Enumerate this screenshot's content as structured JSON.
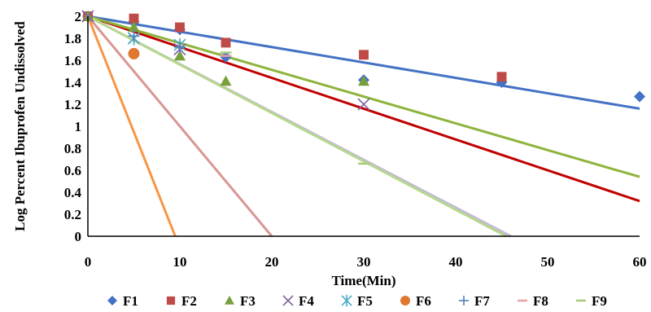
{
  "chart_data": {
    "type": "scatter",
    "xlabel": "Time(Min)",
    "ylabel": "Log Percent Ibuprofen Undissolved",
    "xlim": [
      0,
      60
    ],
    "ylim": [
      0,
      2
    ],
    "x_ticks": [
      "0",
      "10",
      "20",
      "30",
      "40",
      "50",
      "60"
    ],
    "y_ticks": [
      "0",
      "0.2",
      "0.4",
      "0.6",
      "0.8",
      "1",
      "1.2",
      "1.4",
      "1.6",
      "1.8",
      "2"
    ],
    "legend_position": "bottom",
    "series": [
      {
        "name": "F1",
        "marker": "diamond",
        "color": "#4472C4",
        "points": [
          [
            0,
            2.0
          ],
          [
            5,
            1.95
          ],
          [
            10,
            1.88
          ],
          [
            15,
            1.63
          ],
          [
            30,
            1.42
          ],
          [
            45,
            1.4
          ],
          [
            60,
            1.27
          ]
        ],
        "trendline": {
          "color": "#4472C4",
          "points": [
            [
              0,
              2.0
            ],
            [
              60,
              1.16
            ]
          ]
        }
      },
      {
        "name": "F2",
        "marker": "square",
        "color": "#BE4B48",
        "points": [
          [
            0,
            2.0
          ],
          [
            5,
            1.98
          ],
          [
            10,
            1.9
          ],
          [
            15,
            1.76
          ],
          [
            30,
            1.65
          ],
          [
            45,
            1.45
          ]
        ],
        "trendline": {
          "color": "#C00000",
          "points": [
            [
              0,
              2.0
            ],
            [
              60,
              0.32
            ]
          ]
        }
      },
      {
        "name": "F3",
        "marker": "triangle",
        "color": "#77A03C",
        "points": [
          [
            0,
            2.0
          ],
          [
            5,
            1.9
          ],
          [
            10,
            1.64
          ],
          [
            15,
            1.41
          ],
          [
            30,
            1.41
          ]
        ],
        "trendline": {
          "color": "#8DB43C",
          "points": [
            [
              0,
              2.0
            ],
            [
              60,
              0.54
            ]
          ]
        }
      },
      {
        "name": "F4",
        "marker": "x",
        "color": "#8064A2",
        "points": [
          [
            0,
            2.0
          ],
          [
            5,
            1.8
          ],
          [
            10,
            1.7
          ],
          [
            30,
            1.2
          ]
        ],
        "trendline": {
          "color": "#C4B8D8",
          "points": [
            [
              0,
              2.0
            ],
            [
              46,
              0.0
            ]
          ]
        }
      },
      {
        "name": "F5",
        "marker": "asterisk",
        "color": "#4BACC6",
        "points": [
          [
            5,
            1.8
          ],
          [
            10,
            1.74
          ]
        ],
        "trendline": null
      },
      {
        "name": "F6",
        "marker": "circle",
        "color": "#E0772E",
        "points": [
          [
            5,
            1.66
          ]
        ],
        "trendline": {
          "color": "#F79646",
          "points": [
            [
              0,
              2.0
            ],
            [
              9.5,
              0.0
            ]
          ]
        }
      },
      {
        "name": "F7",
        "marker": "plus",
        "color": "#4F81BD",
        "points": [
          [
            5,
            1.82
          ],
          [
            10,
            1.72
          ]
        ],
        "trendline": null
      },
      {
        "name": "F8",
        "marker": "dash",
        "color": "#E6A0A0",
        "points": [
          [
            15,
            1.64
          ]
        ],
        "trendline": {
          "color": "#D99694",
          "points": [
            [
              0,
              2.0
            ],
            [
              20,
              0.0
            ]
          ]
        }
      },
      {
        "name": "F9",
        "marker": "dash",
        "color": "#A6CC7A",
        "points": [
          [
            15,
            1.67
          ],
          [
            30,
            0.66
          ]
        ],
        "trendline": {
          "color": "#B6D88C",
          "points": [
            [
              0,
              2.0
            ],
            [
              45.5,
              0.0
            ]
          ]
        }
      }
    ]
  }
}
